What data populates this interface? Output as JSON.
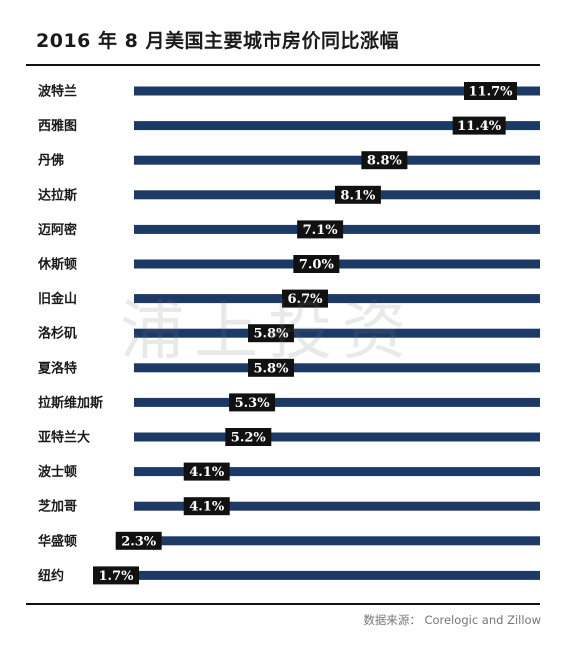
{
  "title": "2016 年 8 月美国主要城市房价同比涨幅",
  "watermark": "浦上投资",
  "source": "数据来源： Corelogic and Zillow",
  "colors": {
    "bar": "#1d3a66",
    "label_bg": "#111111",
    "label_text": "#ffffff",
    "rule": "#111111"
  },
  "chart_data": {
    "type": "bar",
    "orientation": "horizontal",
    "title": "2016 年 8 月美国主要城市房价同比涨幅",
    "categories": [
      "波特兰",
      "西雅图",
      "丹佛",
      "达拉斯",
      "迈阿密",
      "休斯顿",
      "旧金山",
      "洛杉矶",
      "夏洛特",
      "拉斯维加斯",
      "亚特兰大",
      "波士顿",
      "芝加哥",
      "华盛顿",
      "纽约"
    ],
    "values": [
      11.7,
      11.4,
      8.8,
      8.1,
      7.1,
      7.0,
      6.7,
      5.8,
      5.8,
      5.3,
      5.2,
      4.1,
      4.1,
      2.3,
      1.7
    ],
    "value_labels": [
      "11.7%",
      "11.4%",
      "8.8%",
      "8.1%",
      "7.1%",
      "7.0%",
      "6.7%",
      "5.8%",
      "5.8%",
      "5.3%",
      "5.2%",
      "4.1%",
      "4.1%",
      "2.3%",
      "1.7%"
    ],
    "xlim": [
      0,
      12
    ],
    "grid": false,
    "legend": "none"
  }
}
